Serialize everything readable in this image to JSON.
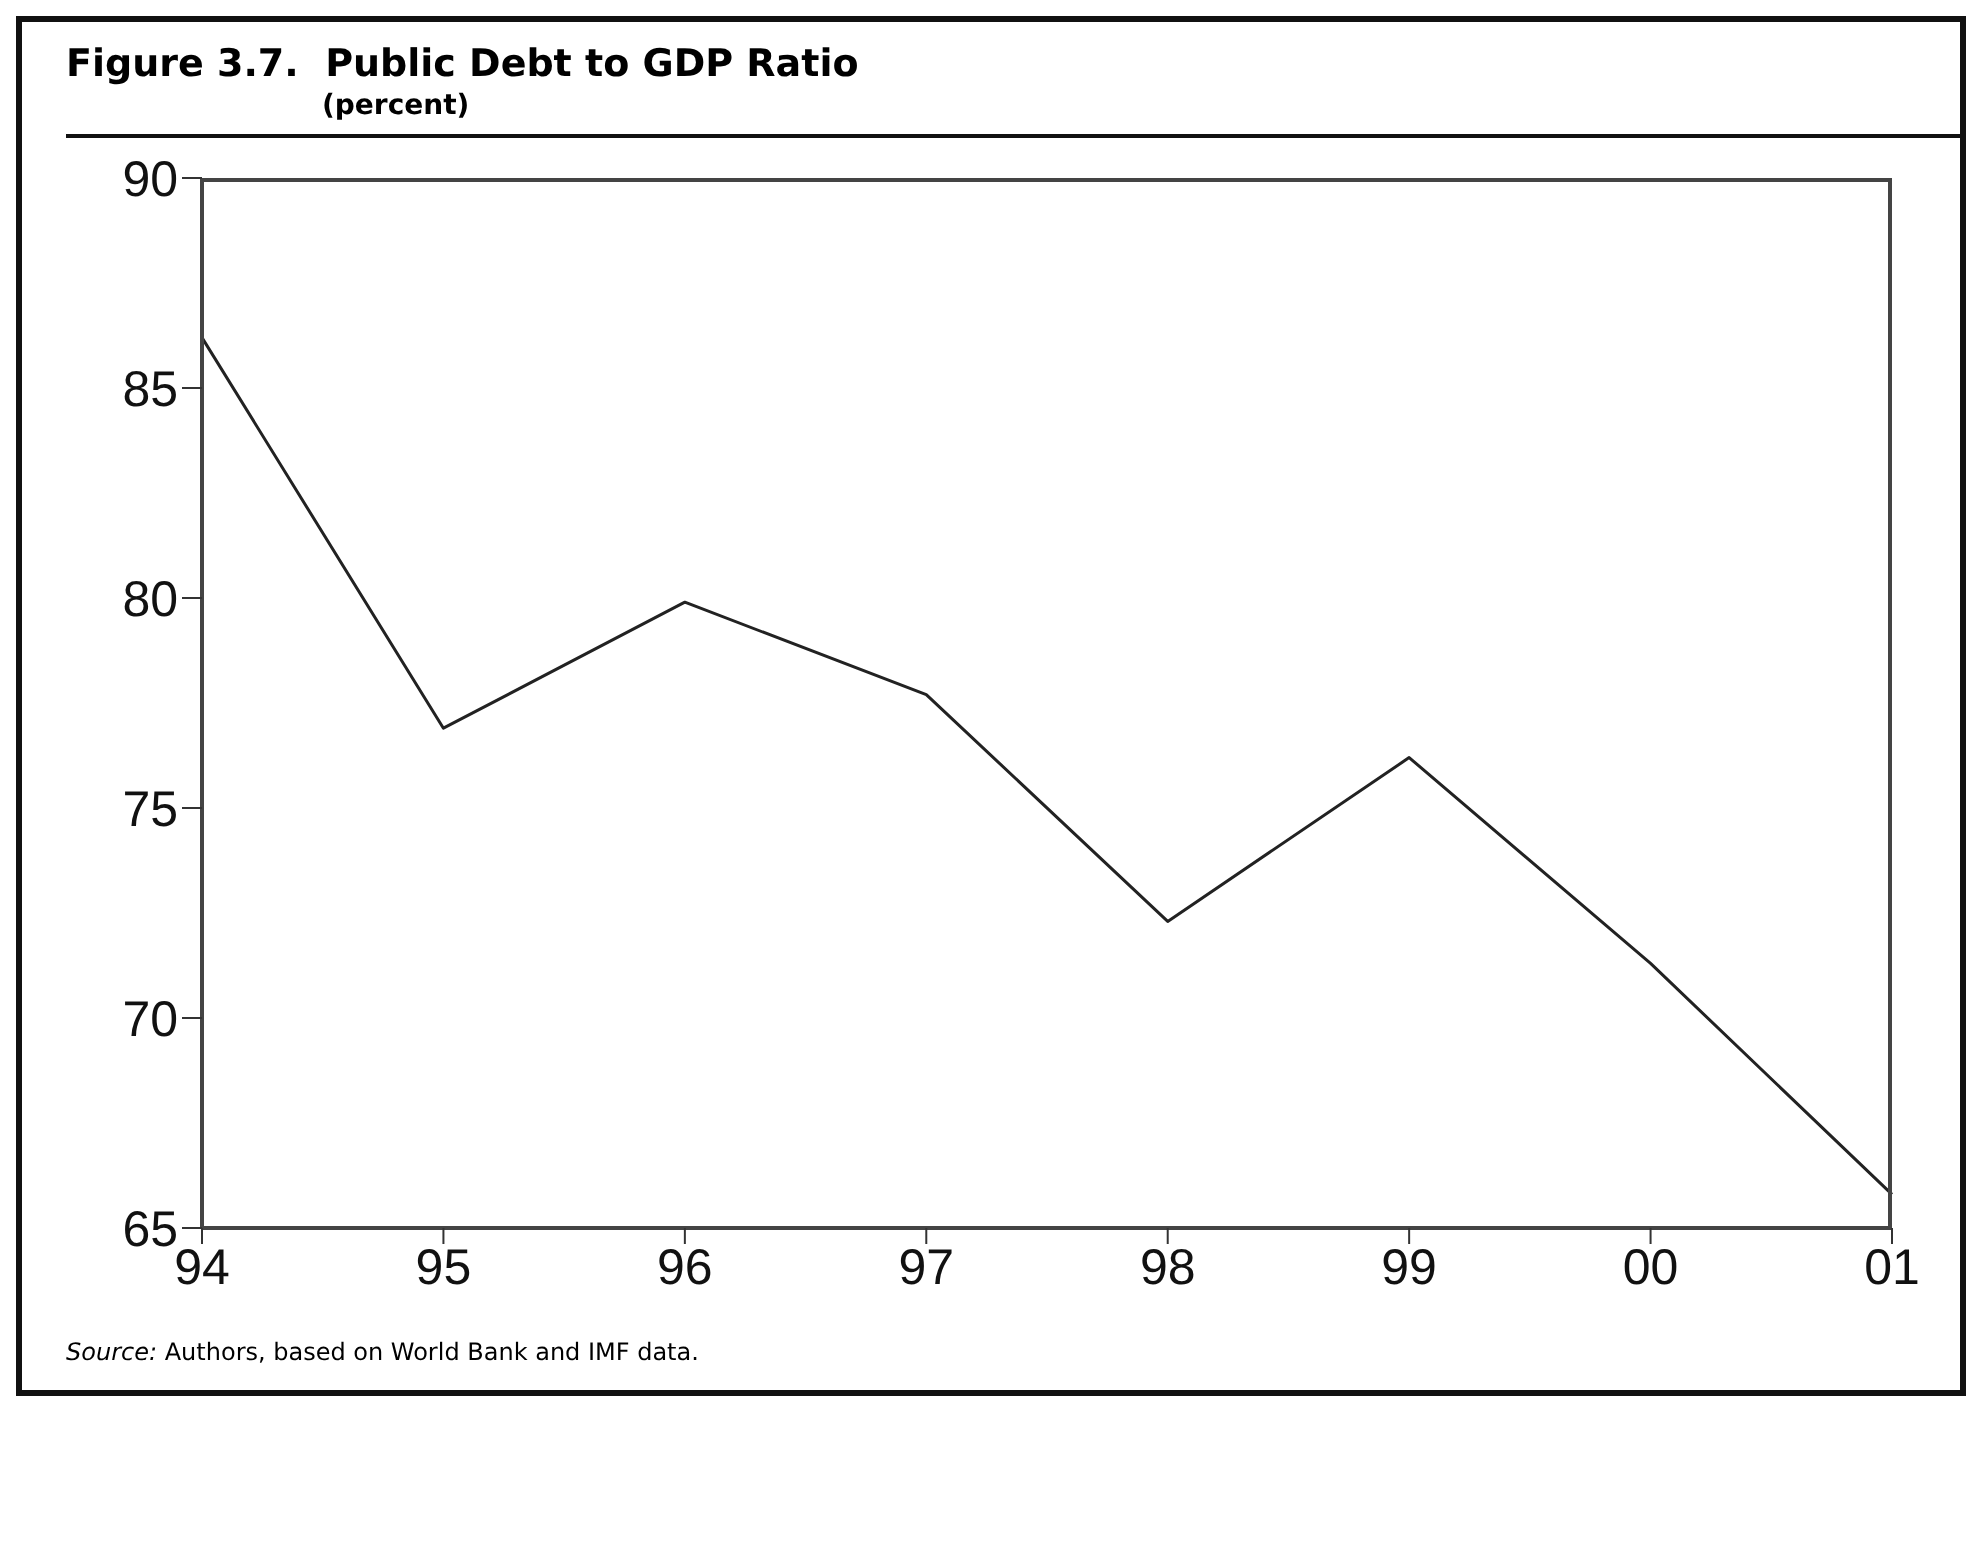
{
  "chart_data": {
    "type": "line",
    "title": "Figure 3.7.  Public Debt to GDP Ratio",
    "subtitle": "(percent)",
    "categories": [
      "94",
      "95",
      "96",
      "97",
      "98",
      "99",
      "00",
      "01"
    ],
    "series": [
      {
        "color": "#222222",
        "values": [
          86.2,
          76.9,
          79.9,
          77.7,
          72.3,
          76.2,
          71.3,
          65.8
        ]
      }
    ],
    "ylim": [
      65,
      90
    ],
    "yticks": [
      65,
      70,
      75,
      80,
      85,
      90
    ],
    "marker": "none",
    "line_style": "solid",
    "annotations": [
      "Source: Authors, based on World Bank and IMF data."
    ]
  }
}
